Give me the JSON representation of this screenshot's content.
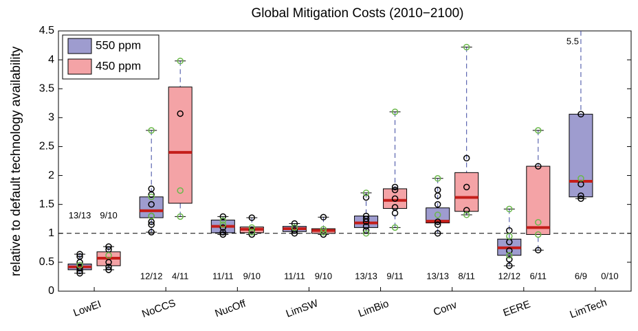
{
  "chart_data": {
    "type": "box",
    "title": "Global Mitigation Costs (2010−2100)",
    "ylabel": "relative to default technology availability",
    "categories": [
      "LowEI",
      "NoCCS",
      "NucOff",
      "LimSW",
      "LimBio",
      "Conv",
      "EERE",
      "LimTech"
    ],
    "ylim": [
      0,
      4.5
    ],
    "yticks": [
      0,
      0.5,
      1,
      1.5,
      2,
      2.5,
      3,
      3.5,
      4,
      4.5
    ],
    "reference_line": 1,
    "legend": "upper left",
    "median_color": "#c41e1a",
    "whisker_color": "#3a46a0",
    "point_color": "#000000",
    "highlight_color": "#6ab84a",
    "series": [
      {
        "name": "550 ppm",
        "color": "#9e9ccf",
        "counts": [
          "13/13",
          "12/12",
          "11/11",
          "11/11",
          "13/13",
          "13/13",
          "12/12",
          "6/9"
        ],
        "boxes": [
          {
            "q1": 0.37,
            "median": 0.42,
            "q3": 0.47,
            "low": 0.31,
            "high": 0.64,
            "points": [
              0.31,
              0.35,
              0.4,
              0.5,
              0.6,
              0.64
            ],
            "highlight": [
              0.45
            ]
          },
          {
            "q1": 1.27,
            "median": 1.39,
            "q3": 1.63,
            "low": 1.02,
            "high": 2.78,
            "points": [
              1.02,
              1.15,
              1.2,
              1.3,
              1.5,
              1.67,
              1.77
            ],
            "highlight": [
              2.78,
              1.63,
              1.3
            ]
          },
          {
            "q1": 1.01,
            "median": 1.12,
            "q3": 1.23,
            "low": 0.98,
            "high": 1.29,
            "points": [
              0.98,
              1.02,
              1.1,
              1.29
            ],
            "highlight": [
              1.15,
              1.22
            ]
          },
          {
            "q1": 1.03,
            "median": 1.08,
            "q3": 1.12,
            "low": 1.0,
            "high": 1.17,
            "points": [
              1.0,
              1.05,
              1.17
            ],
            "highlight": [
              1.1
            ]
          },
          {
            "q1": 1.1,
            "median": 1.18,
            "q3": 1.3,
            "low": 1.0,
            "high": 1.7,
            "points": [
              1.05,
              1.12,
              1.2,
              1.25,
              1.3,
              1.62
            ],
            "highlight": [
              1.0,
              1.7
            ]
          },
          {
            "q1": 1.18,
            "median": 1.21,
            "q3": 1.44,
            "low": 1.0,
            "high": 1.95,
            "points": [
              1.0,
              1.15,
              1.2,
              1.5,
              1.65,
              1.75
            ],
            "highlight": [
              1.95,
              1.32
            ]
          },
          {
            "q1": 0.62,
            "median": 0.75,
            "q3": 0.9,
            "low": 0.44,
            "high": 1.42,
            "points": [
              0.44,
              0.55,
              0.7,
              0.85,
              1.05
            ],
            "highlight": [
              1.42,
              0.95,
              0.62
            ]
          },
          {
            "q1": 1.63,
            "median": 1.9,
            "q3": 3.06,
            "low": 1.6,
            "high": 5.5,
            "points": [
              1.6,
              1.65,
              1.85,
              3.06
            ],
            "highlight": [
              1.95
            ]
          }
        ]
      },
      {
        "name": "450 ppm",
        "color": "#f4a3a6",
        "counts": [
          "9/10",
          "4/11",
          "9/10",
          "9/10",
          "9/11",
          "8/11",
          "6/11",
          "0/10"
        ],
        "boxes": [
          {
            "q1": 0.44,
            "median": 0.57,
            "q3": 0.68,
            "low": 0.37,
            "high": 0.77,
            "points": [
              0.37,
              0.42,
              0.5,
              0.72,
              0.77
            ],
            "highlight": [
              0.62
            ]
          },
          {
            "q1": 1.52,
            "median": 2.4,
            "q3": 3.53,
            "low": 1.29,
            "high": 3.98,
            "points": [
              3.07
            ],
            "highlight": [
              1.29,
              1.74,
              3.98
            ]
          },
          {
            "q1": 1.01,
            "median": 1.07,
            "q3": 1.11,
            "low": 0.98,
            "high": 1.27,
            "points": [
              0.98,
              1.05,
              1.27
            ],
            "highlight": [
              1.02,
              1.1
            ]
          },
          {
            "q1": 1.0,
            "median": 1.05,
            "q3": 1.08,
            "low": 0.98,
            "high": 1.28,
            "points": [
              0.98,
              1.28
            ],
            "highlight": [
              1.02,
              1.07
            ]
          },
          {
            "q1": 1.43,
            "median": 1.57,
            "q3": 1.77,
            "low": 1.1,
            "high": 3.1,
            "points": [
              1.35,
              1.45,
              1.6,
              1.75,
              1.8
            ],
            "highlight": [
              1.1,
              3.1
            ]
          },
          {
            "q1": 1.38,
            "median": 1.62,
            "q3": 2.05,
            "low": 1.32,
            "high": 4.22,
            "points": [
              1.4,
              1.8,
              2.3
            ],
            "highlight": [
              1.32,
              4.22
            ]
          },
          {
            "q1": 0.98,
            "median": 1.1,
            "q3": 2.16,
            "low": 0.71,
            "high": 2.78,
            "points": [
              0.71,
              2.16
            ],
            "highlight": [
              0.98,
              1.19,
              2.78
            ]
          },
          null
        ]
      }
    ]
  }
}
